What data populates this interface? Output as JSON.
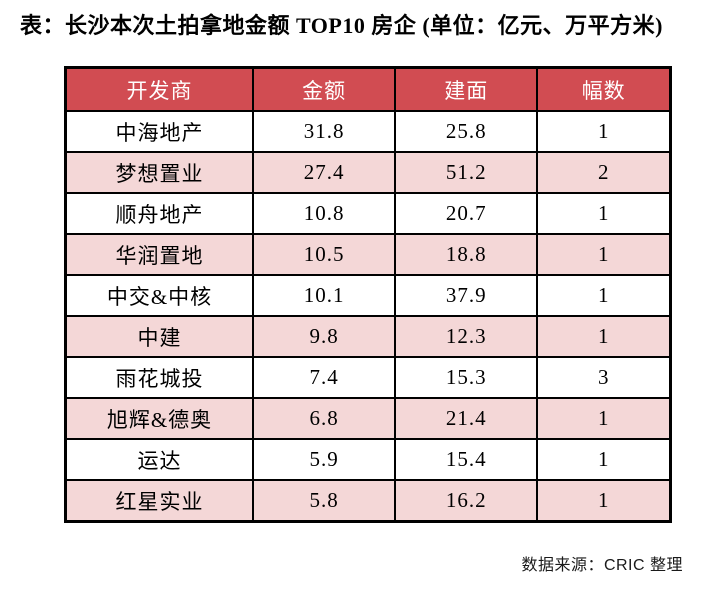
{
  "title": "表：长沙本次土拍拿地金额 TOP10 房企 (单位：亿元、万平方米)",
  "source_note": "数据来源：CRIC 整理",
  "colors": {
    "header_bg": "#d14c52",
    "header_text": "#ffffff",
    "row_bg": "#ffffff",
    "row_alt_bg": "#f4d7d7",
    "border": "#000000",
    "text": "#000000"
  },
  "table": {
    "columns": [
      "开发商",
      "金额",
      "建面",
      "幅数"
    ],
    "column_keys": [
      "developer",
      "amount",
      "area",
      "plots"
    ],
    "rows": [
      [
        "中海地产",
        "31.8",
        "25.8",
        "1"
      ],
      [
        "梦想置业",
        "27.4",
        "51.2",
        "2"
      ],
      [
        "顺舟地产",
        "10.8",
        "20.7",
        "1"
      ],
      [
        "华润置地",
        "10.5",
        "18.8",
        "1"
      ],
      [
        "中交&中核",
        "10.1",
        "37.9",
        "1"
      ],
      [
        "中建",
        "9.8",
        "12.3",
        "1"
      ],
      [
        "雨花城投",
        "7.4",
        "15.3",
        "3"
      ],
      [
        "旭辉&德奥",
        "6.8",
        "21.4",
        "1"
      ],
      [
        "运达",
        "5.9",
        "15.4",
        "1"
      ],
      [
        "红星实业",
        "5.8",
        "16.2",
        "1"
      ]
    ]
  },
  "chart_data": {
    "type": "table",
    "title": "表：长沙本次土拍拿地金额 TOP10 房企 (单位：亿元、万平方米)",
    "units": {
      "金额": "亿元",
      "建面": "万平方米"
    },
    "columns": [
      "开发商",
      "金额",
      "建面",
      "幅数"
    ],
    "rows": [
      {
        "开发商": "中海地产",
        "金额": 31.8,
        "建面": 25.8,
        "幅数": 1
      },
      {
        "开发商": "梦想置业",
        "金额": 27.4,
        "建面": 51.2,
        "幅数": 2
      },
      {
        "开发商": "顺舟地产",
        "金额": 10.8,
        "建面": 20.7,
        "幅数": 1
      },
      {
        "开发商": "华润置地",
        "金额": 10.5,
        "建面": 18.8,
        "幅数": 1
      },
      {
        "开发商": "中交&中核",
        "金额": 10.1,
        "建面": 37.9,
        "幅数": 1
      },
      {
        "开发商": "中建",
        "金额": 9.8,
        "建面": 12.3,
        "幅数": 1
      },
      {
        "开发商": "雨花城投",
        "金额": 7.4,
        "建面": 15.3,
        "幅数": 3
      },
      {
        "开发商": "旭辉&德奥",
        "金额": 6.8,
        "建面": 21.4,
        "幅数": 1
      },
      {
        "开发商": "运达",
        "金额": 5.9,
        "建面": 15.4,
        "幅数": 1
      },
      {
        "开发商": "红星实业",
        "金额": 5.8,
        "建面": 16.2,
        "幅数": 1
      }
    ],
    "source": "数据来源：CRIC 整理"
  }
}
